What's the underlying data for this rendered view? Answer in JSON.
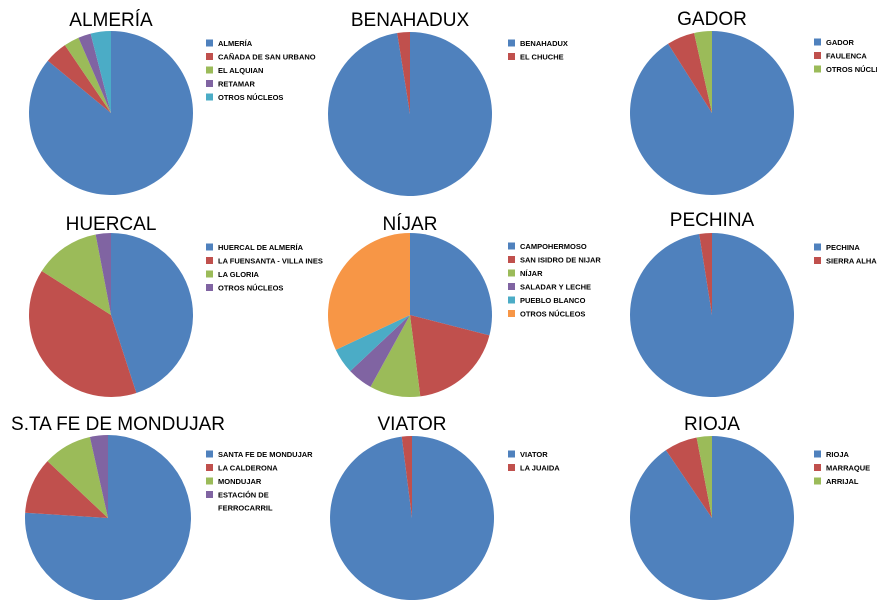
{
  "chart_data": [
    {
      "type": "pie",
      "title": "ALMERÍA",
      "categories": [
        "ALMERÍA",
        "CAÑADA DE SAN URBANO",
        "EL ALQUIAN",
        "RETAMAR",
        "OTROS NÚCLEOS"
      ],
      "values": [
        86,
        4.5,
        3,
        2.5,
        4
      ],
      "colors": [
        "#4f81bd",
        "#c0504d",
        "#9bbb59",
        "#8064a2",
        "#4bacc6"
      ]
    },
    {
      "type": "pie",
      "title": "BENAHADUX",
      "categories": [
        "BENAHADUX",
        "EL CHUCHE"
      ],
      "values": [
        97.5,
        2.5
      ],
      "colors": [
        "#4f81bd",
        "#c0504d"
      ]
    },
    {
      "type": "pie",
      "title": "GADOR",
      "categories": [
        "GADOR",
        "FAULENCA",
        "OTROS NÚCLEOS"
      ],
      "values": [
        91,
        5.5,
        3.5
      ],
      "colors": [
        "#4f81bd",
        "#c0504d",
        "#9bbb59"
      ]
    },
    {
      "type": "pie",
      "title": "HUERCAL",
      "categories": [
        "HUERCAL DE ALMERÍA",
        "LA FUENSANTA - VILLA INES",
        "LA GLORIA",
        "OTROS NÚCLEOS"
      ],
      "values": [
        45,
        39,
        13,
        3
      ],
      "colors": [
        "#4f81bd",
        "#c0504d",
        "#9bbb59",
        "#8064a2"
      ]
    },
    {
      "type": "pie",
      "title": "NÍJAR",
      "categories": [
        "CAMPOHERMOSO",
        "SAN ISIDRO DE NIJAR",
        "NÍJAR",
        "SALADAR Y LECHE",
        "PUEBLO BLANCO",
        "OTROS NÚCLEOS"
      ],
      "values": [
        29,
        19,
        10,
        5,
        5,
        32
      ],
      "colors": [
        "#4f81bd",
        "#c0504d",
        "#9bbb59",
        "#8064a2",
        "#4bacc6",
        "#f79646"
      ]
    },
    {
      "type": "pie",
      "title": "PECHINA",
      "categories": [
        "PECHINA",
        "SIERRA ALHAMILLA"
      ],
      "values": [
        97.5,
        2.5
      ],
      "colors": [
        "#4f81bd",
        "#c0504d"
      ]
    },
    {
      "type": "pie",
      "title": "S.TA FE DE MONDUJAR",
      "categories": [
        "SANTA FE DE MONDUJAR",
        "LA CALDERONA",
        "MONDUJAR",
        "ESTACIÓN DE FERROCARRIL"
      ],
      "values": [
        76,
        11,
        9.5,
        3.5
      ],
      "colors": [
        "#4f81bd",
        "#c0504d",
        "#9bbb59",
        "#8064a2"
      ]
    },
    {
      "type": "pie",
      "title": "VIATOR",
      "categories": [
        "VIATOR",
        "LA JUAIDA"
      ],
      "values": [
        98,
        2
      ],
      "colors": [
        "#4f81bd",
        "#c0504d"
      ]
    },
    {
      "type": "pie",
      "title": "RIOJA",
      "categories": [
        "RIOJA",
        "MARRAQUE",
        "ARRIJAL"
      ],
      "values": [
        90.5,
        6.5,
        3
      ],
      "colors": [
        "#4f81bd",
        "#c0504d",
        "#9bbb59"
      ]
    }
  ]
}
